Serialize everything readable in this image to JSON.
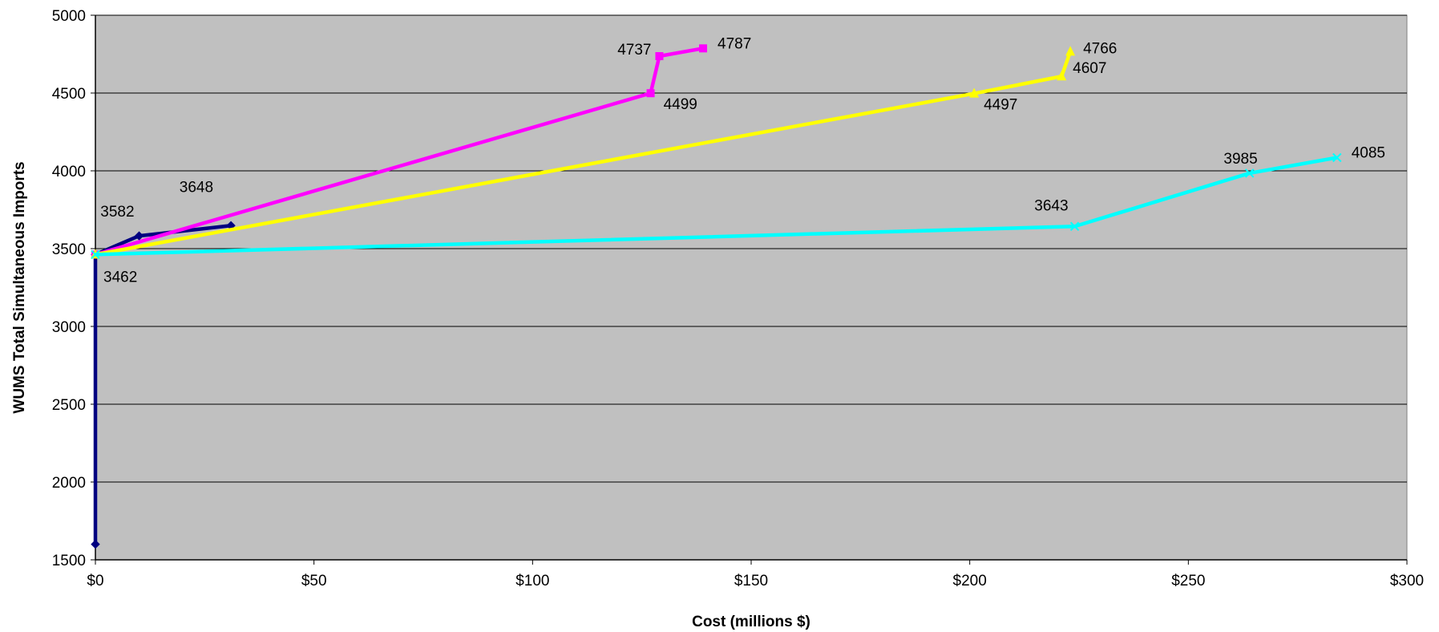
{
  "chart_data": {
    "type": "line",
    "title": "",
    "xlabel": "Cost (millions $)",
    "ylabel": "WUMS Total Simultaneous Imports",
    "xlim": [
      0,
      300
    ],
    "ylim": [
      1500,
      5000
    ],
    "x_ticks": [
      0,
      50,
      100,
      150,
      200,
      250,
      300
    ],
    "x_tick_labels": [
      "$0",
      "$50",
      "$100",
      "$150",
      "$200",
      "$250",
      "$300"
    ],
    "y_ticks": [
      1500,
      2000,
      2500,
      3000,
      3500,
      4000,
      4500,
      5000
    ],
    "y_tick_labels": [
      "1500",
      "2000",
      "2500",
      "3000",
      "3500",
      "4000",
      "4500",
      "5000"
    ],
    "grid": "horizontal",
    "plot_background": "#c0c0c0",
    "legend": "none",
    "series": [
      {
        "color": "#000080",
        "marker": "diamond",
        "points": [
          [
            0,
            1600
          ],
          [
            0,
            3462
          ],
          [
            10,
            3582
          ],
          [
            31,
            3648
          ]
        ],
        "labels": [
          "",
          "3462",
          "3582",
          "3648"
        ]
      },
      {
        "color": "#ff00ff",
        "marker": "square",
        "points": [
          [
            0,
            3462
          ],
          [
            127,
            4499
          ],
          [
            129,
            4737
          ],
          [
            139,
            4787
          ]
        ],
        "labels": [
          "",
          "4499",
          "4737",
          "4787"
        ]
      },
      {
        "color": "#ffff00",
        "marker": "triangle",
        "points": [
          [
            0,
            3462
          ],
          [
            201,
            4497
          ],
          [
            221,
            4607
          ],
          [
            223,
            4766
          ]
        ],
        "labels": [
          "",
          "4497",
          "4607",
          "4766"
        ]
      },
      {
        "color": "#00ffff",
        "marker": "x",
        "points": [
          [
            0,
            3462
          ],
          [
            224,
            3643
          ],
          [
            264,
            3985
          ],
          [
            284,
            4085
          ]
        ],
        "labels": [
          "",
          "3643",
          "3985",
          "4085"
        ]
      }
    ]
  }
}
